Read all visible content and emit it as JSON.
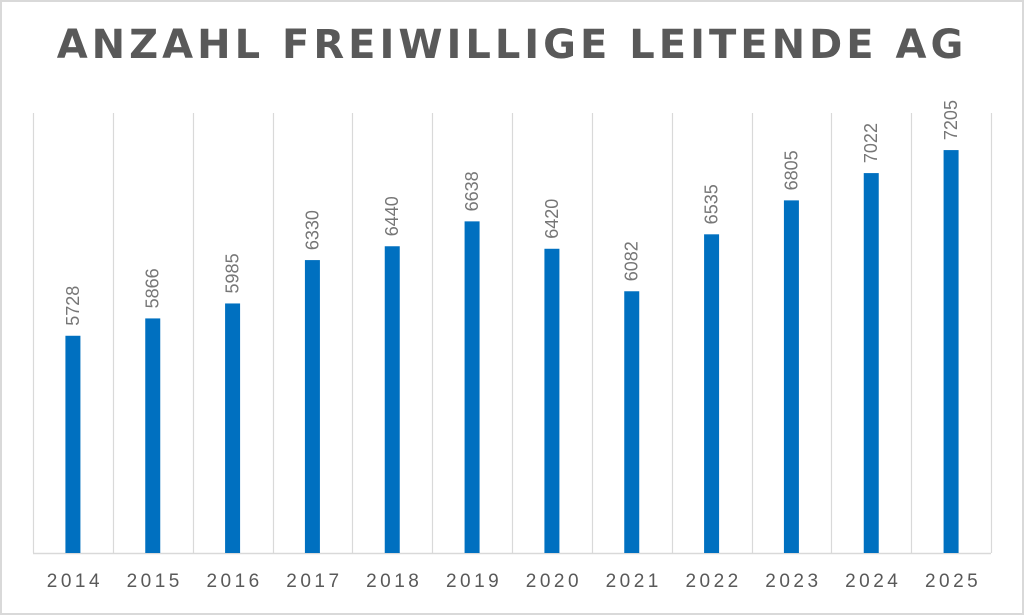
{
  "chart_data": {
    "type": "bar",
    "title": "ANZAHL FREIWILLIGE LEITENDE AG",
    "categories": [
      "2014",
      "2015",
      "2016",
      "2017",
      "2018",
      "2019",
      "2020",
      "2021",
      "2022",
      "2023",
      "2024",
      "2025"
    ],
    "values": [
      5728,
      5866,
      5985,
      6330,
      6440,
      6638,
      6420,
      6082,
      6535,
      6805,
      7022,
      7205
    ],
    "xlabel": "",
    "ylabel": "",
    "ylim": [
      4000,
      7500
    ],
    "grid": "vertical",
    "legend": "none",
    "bar_color": "#0070c0",
    "label_color": "#767676",
    "grid_color": "#d9d9d9"
  }
}
